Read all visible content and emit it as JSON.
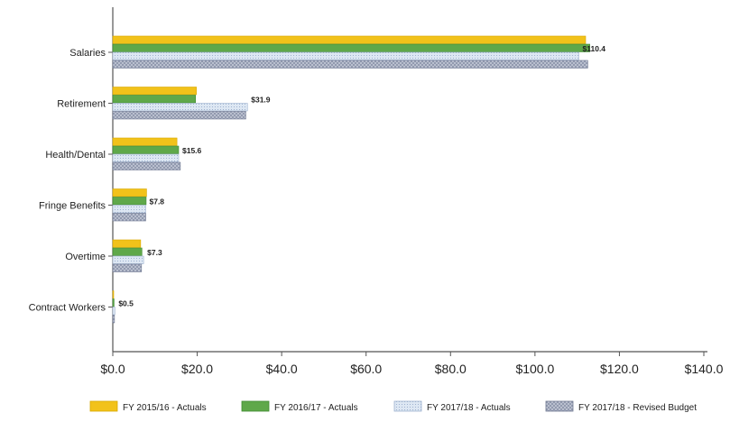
{
  "chart_data": {
    "type": "bar",
    "orientation": "horizontal",
    "categories": [
      "Salaries",
      "Retirement",
      "Health/Dental",
      "Fringe Benefits",
      "Overtime",
      "Contract Workers"
    ],
    "series": [
      {
        "name": "FY 2015/16 - Actuals",
        "color": "#f2c21a",
        "values": [
          112.0,
          19.8,
          15.2,
          8.0,
          6.6,
          0.2
        ]
      },
      {
        "name": "FY 2016/17 - Actuals",
        "color": "#5fa84a",
        "values": [
          113.0,
          19.6,
          15.6,
          7.9,
          6.9,
          0.3
        ]
      },
      {
        "name": "FY 2017/18 - Actuals",
        "color": "#dde7f3",
        "values": [
          110.4,
          31.9,
          15.6,
          7.8,
          7.3,
          0.5
        ]
      },
      {
        "name": "FY 2017/18 - Revised Budget",
        "color": "#8e96ac",
        "values": [
          112.5,
          31.5,
          16.0,
          7.8,
          6.8,
          0.4
        ]
      }
    ],
    "data_labels": [
      "$110.4",
      "$31.9",
      "$15.6",
      "$7.8",
      "$7.3",
      "$0.5"
    ],
    "data_label_series": 2,
    "xlim": [
      0,
      140
    ],
    "xticks": [
      0,
      20,
      40,
      60,
      80,
      100,
      120,
      140
    ],
    "xtick_labels": [
      "$0.0",
      "$20.0",
      "$40.0",
      "$60.0",
      "$80.0",
      "$100.0",
      "$120.0",
      "$140.0"
    ],
    "grid": false,
    "legend_position": "bottom",
    "title": "",
    "xlabel": "",
    "ylabel": ""
  }
}
